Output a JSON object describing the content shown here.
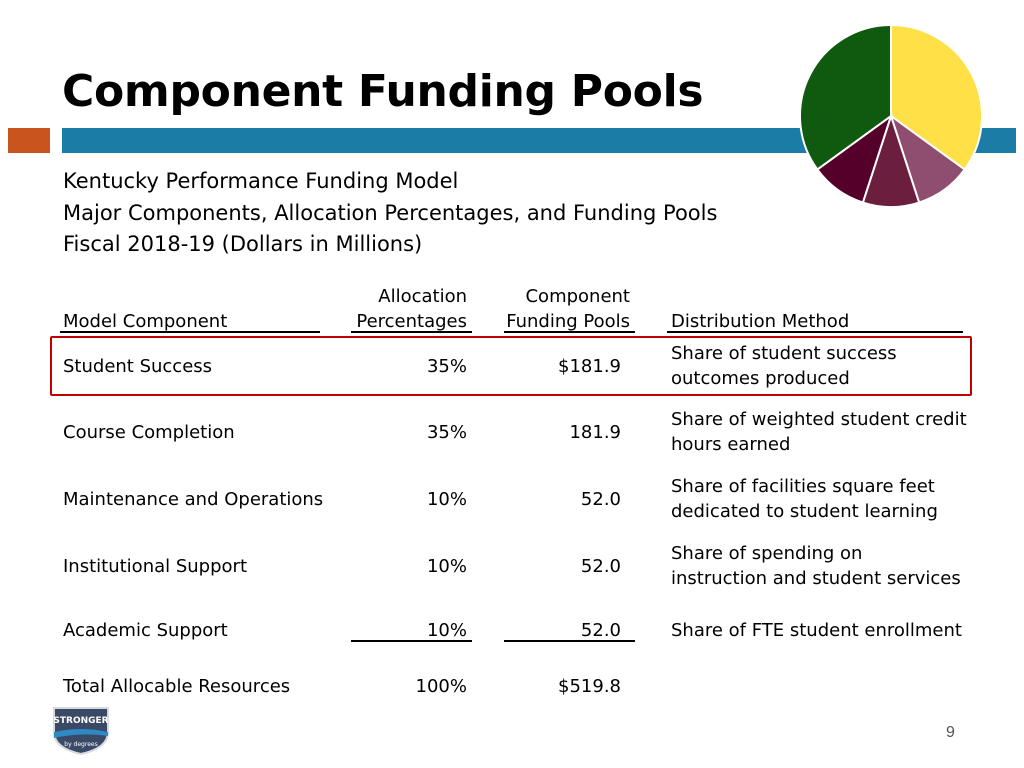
{
  "title": "Component Funding Pools",
  "colors": {
    "accent_orange": "#c9541e",
    "accent_blue": "#1b7ca6",
    "highlight_border": "#c00000"
  },
  "subtitle": [
    "Kentucky Performance Funding Model",
    "Major Components, Allocation Percentages, and Funding Pools",
    "Fiscal 2018-19 (Dollars in Millions)"
  ],
  "table": {
    "headers": {
      "component": "Model Component",
      "allocation_line1": "Allocation",
      "allocation_line2": "Percentages",
      "pool_line1": "Component",
      "pool_line2": "Funding Pools",
      "method": "Distribution Method"
    },
    "rows": [
      {
        "component": "Student Success",
        "allocation": "35%",
        "pool": "$181.9",
        "method1": "Share of student success",
        "method2": "outcomes produced"
      },
      {
        "component": "Course Completion",
        "allocation": "35%",
        "pool": "181.9",
        "method1": "Share of weighted student credit",
        "method2": "hours earned"
      },
      {
        "component": "Maintenance and Operations",
        "allocation": "10%",
        "pool": "52.0",
        "method1": "Share of facilities square feet",
        "method2": "dedicated to student learning"
      },
      {
        "component": "Institutional Support",
        "allocation": "10%",
        "pool": "52.0",
        "method1": "Share of spending on",
        "method2": "instruction and student services"
      },
      {
        "component": "Academic Support",
        "allocation": "10%",
        "pool": "52.0",
        "method1": "Share of FTE student enrollment",
        "method2": ""
      }
    ],
    "total": {
      "component": "Total Allocable Resources",
      "allocation": "100%",
      "pool": "$519.8"
    }
  },
  "pie_chart": {
    "slices": [
      {
        "share": 35,
        "color": "#ffe047"
      },
      {
        "share": 10,
        "color": "#8f4d6f"
      },
      {
        "share": 10,
        "color": "#6c1e3e"
      },
      {
        "share": 10,
        "color": "#55002a"
      },
      {
        "share": 35,
        "color": "#0f5a0e"
      }
    ]
  },
  "logo": {
    "text_main": "STRONGER",
    "text_sub": "by degrees"
  },
  "page_number": "9"
}
